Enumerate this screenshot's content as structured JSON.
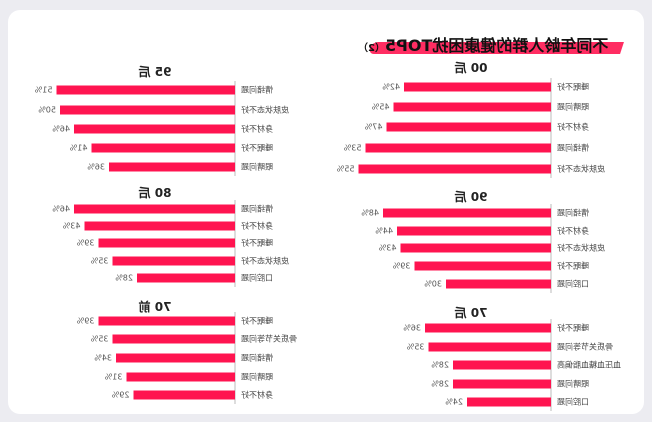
{
  "title": {
    "main": "不同年龄人群的健康困扰TOP5",
    "sub": "（2）"
  },
  "colors": {
    "bar": "#ff1450",
    "label": "#444444",
    "value": "#555555",
    "heading": "#222222",
    "axis": "#bbbbbb"
  },
  "chart_data": [
    {
      "type": "bar",
      "title": "95 后",
      "categories": [
        "情绪问题",
        "皮肤状态不好",
        "身材不好",
        "睡眠不好",
        "眼睛问题"
      ],
      "values": [
        51,
        50,
        46,
        41,
        36
      ],
      "value_labels": [
        "51%",
        "50%",
        "46%",
        "41%",
        "36%"
      ]
    },
    {
      "type": "bar",
      "title": "00 后",
      "categories": [
        "睡眠不好",
        "眼睛问题",
        "身材不好",
        "情绪问题",
        "皮肤状态不好"
      ],
      "values": [
        42,
        45,
        47,
        53,
        55
      ],
      "value_labels": [
        "42%",
        "45%",
        "47%",
        "53%",
        "55%"
      ]
    },
    {
      "type": "bar",
      "title": "80 后",
      "categories": [
        "情绪问题",
        "身材不好",
        "睡眠不好",
        "皮肤状态不好",
        "口腔问题"
      ],
      "values": [
        46,
        43,
        39,
        35,
        28
      ],
      "value_labels": [
        "46%",
        "43%",
        "39%",
        "35%",
        "28%"
      ]
    },
    {
      "type": "bar",
      "title": "90 后",
      "categories": [
        "情绪问题",
        "身材不好",
        "皮肤状态不好",
        "睡眠不好",
        "口腔问题"
      ],
      "values": [
        48,
        44,
        43,
        39,
        30
      ],
      "value_labels": [
        "48%",
        "44%",
        "43%",
        "39%",
        "30%"
      ]
    },
    {
      "type": "bar",
      "title": "70 前",
      "categories": [
        "睡眠不好",
        "骨质关节等问题",
        "情绪问题",
        "眼睛问题",
        "身材不好"
      ],
      "values": [
        39,
        35,
        34,
        31,
        29
      ],
      "value_labels": [
        "39%",
        "35%",
        "34%",
        "31%",
        "29%"
      ]
    },
    {
      "type": "bar",
      "title": "70 后",
      "categories": [
        "睡眠不好",
        "骨质关节等问题",
        "血压血糖血脂偏高",
        "眼睛问题",
        "口腔问题"
      ],
      "values": [
        36,
        35,
        28,
        28,
        24
      ],
      "value_labels": [
        "36%",
        "35%",
        "28%",
        "28%",
        "24%"
      ]
    }
  ]
}
